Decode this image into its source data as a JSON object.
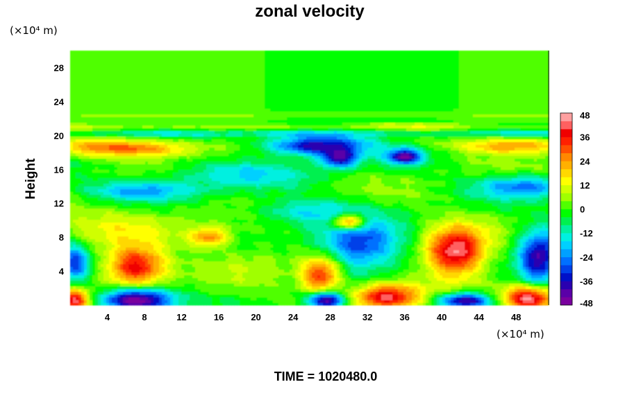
{
  "chart_data": {
    "type": "heatmap",
    "title": "zonal velocity",
    "ylabel": "Height",
    "x_unit": "(×10⁴ m)",
    "y_unit": "(×10⁴ m)",
    "xlim": [
      0,
      51.5
    ],
    "ylim": [
      0,
      30
    ],
    "xticks": [
      "4",
      "8",
      "12",
      "16",
      "20",
      "24",
      "28",
      "32",
      "36",
      "40",
      "44",
      "48"
    ],
    "yticks": [
      "4",
      "8",
      "12",
      "16",
      "20",
      "24",
      "28"
    ],
    "colorbar": {
      "min": -48,
      "max": 48,
      "step": 4,
      "ticks": [
        "48",
        "36",
        "24",
        "12",
        "0",
        "-12",
        "-24",
        "-36",
        "-48"
      ]
    },
    "features": [
      {
        "x": 7,
        "y": 4.5,
        "value": 42,
        "sx": 3.2,
        "sy": 2.3
      },
      {
        "x": 7,
        "y": 0.6,
        "value": -52,
        "sx": 3.8,
        "sy": 1.4
      },
      {
        "x": 27,
        "y": 3.5,
        "value": 38,
        "sx": 2.2,
        "sy": 2.4
      },
      {
        "x": 27.5,
        "y": 0.5,
        "value": -50,
        "sx": 2.0,
        "sy": 1.1
      },
      {
        "x": 41.5,
        "y": 6.2,
        "value": 48,
        "sx": 3.2,
        "sy": 2.8
      },
      {
        "x": 34,
        "y": 1.0,
        "value": 42,
        "sx": 3.6,
        "sy": 1.6
      },
      {
        "x": 49.5,
        "y": 0.8,
        "value": 50,
        "sx": 2.8,
        "sy": 1.5
      },
      {
        "x": 42.5,
        "y": 0.5,
        "value": -44,
        "sx": 3.0,
        "sy": 1.0
      },
      {
        "x": 0.5,
        "y": 0.6,
        "value": 40,
        "sx": 1.5,
        "sy": 1.2
      },
      {
        "x": 31,
        "y": 7.0,
        "value": -34,
        "sx": 4.5,
        "sy": 2.8
      },
      {
        "x": 50.5,
        "y": 5.5,
        "value": -42,
        "sx": 2.2,
        "sy": 3.2
      },
      {
        "x": 0.5,
        "y": 5.0,
        "value": -30,
        "sx": 1.5,
        "sy": 2.2
      },
      {
        "x": 30,
        "y": 9.8,
        "value": 40,
        "sx": 1.8,
        "sy": 0.9
      },
      {
        "x": 15,
        "y": 8.0,
        "value": 26,
        "sx": 2.2,
        "sy": 1.2
      },
      {
        "x": 6,
        "y": 18.5,
        "value": 30,
        "sx": 8.0,
        "sy": 1.0
      },
      {
        "x": 48,
        "y": 18.8,
        "value": 26,
        "sx": 6.0,
        "sy": 0.9
      },
      {
        "x": 26.5,
        "y": 18.8,
        "value": -42,
        "sx": 5.5,
        "sy": 1.2
      },
      {
        "x": 29,
        "y": 17.2,
        "value": -36,
        "sx": 2.0,
        "sy": 1.0
      },
      {
        "x": 36,
        "y": 17.5,
        "value": -40,
        "sx": 1.8,
        "sy": 0.9
      },
      {
        "x": 8,
        "y": 13.5,
        "value": -20,
        "sx": 6.5,
        "sy": 1.2
      },
      {
        "x": 49,
        "y": 14.0,
        "value": -24,
        "sx": 5.0,
        "sy": 1.3
      },
      {
        "x": 18,
        "y": 15.5,
        "value": -14,
        "sx": 8.0,
        "sy": 1.5
      },
      {
        "x": 25,
        "y": 11.0,
        "value": -16,
        "sx": 6.0,
        "sy": 1.5
      },
      {
        "x": 5,
        "y": 9.5,
        "value": 10,
        "sx": 8.0,
        "sy": 2.5
      },
      {
        "x": 20,
        "y": 5.5,
        "value": 6,
        "sx": 5.0,
        "sy": 2.5
      }
    ],
    "bands": [
      {
        "y": 21.0,
        "value": 6,
        "sy": 0.35
      },
      {
        "y": 20.2,
        "value": -10,
        "sy": 0.4
      },
      {
        "y": 22.4,
        "value": 4,
        "sy": 0.3
      }
    ]
  },
  "time_label": "TIME = 1020480.0"
}
